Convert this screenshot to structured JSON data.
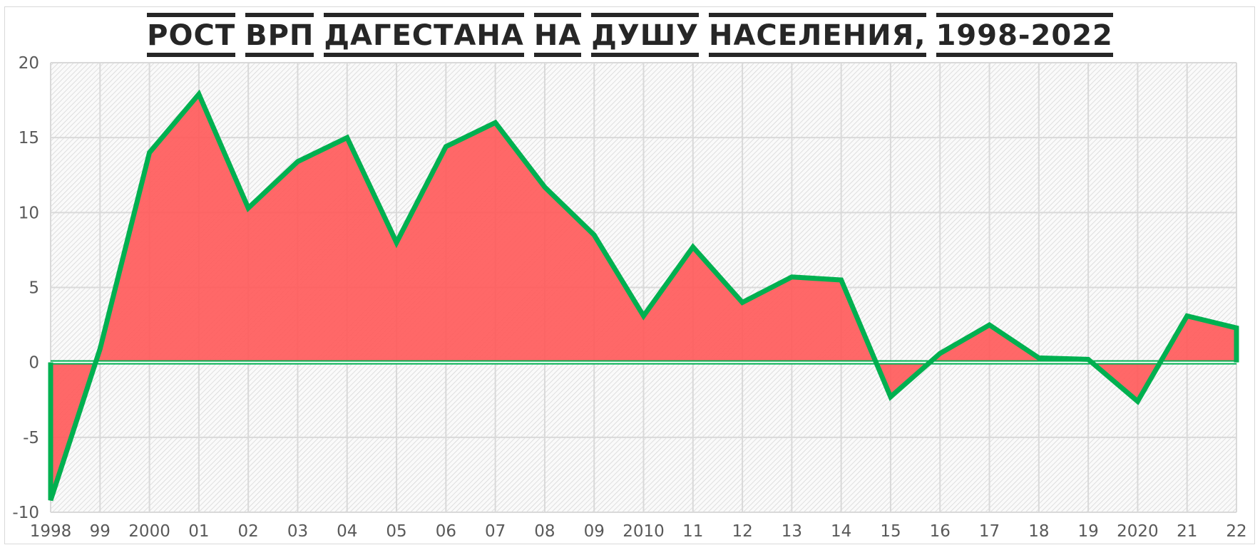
{
  "chart_data": {
    "type": "area",
    "title": "РОСТ ВРП ДАГЕСТАНА НА ДУШУ НАСЕЛЕНИЯ, 1998-2022",
    "categories": [
      "1998",
      "99",
      "2000",
      "01",
      "02",
      "03",
      "04",
      "05",
      "06",
      "07",
      "08",
      "09",
      "2010",
      "11",
      "12",
      "13",
      "14",
      "15",
      "16",
      "17",
      "18",
      "19",
      "2020",
      "21",
      "22"
    ],
    "values": [
      -9.2,
      0.9,
      14.0,
      17.9,
      10.3,
      13.4,
      15.0,
      8.0,
      14.4,
      16.0,
      11.7,
      8.5,
      3.1,
      7.7,
      4.0,
      5.7,
      5.5,
      -2.3,
      0.6,
      2.5,
      0.3,
      0.2,
      -2.6,
      3.1,
      2.3
    ],
    "yticks": [
      "20",
      "15",
      "10",
      "5",
      "0",
      "-5",
      "-10"
    ],
    "ylim": [
      -10,
      20
    ],
    "grid": true,
    "colors": {
      "fill": "#ff5b5b",
      "line": "#00b050",
      "grid": "#d9d9d9",
      "hatch": "#d0d0d0"
    }
  }
}
